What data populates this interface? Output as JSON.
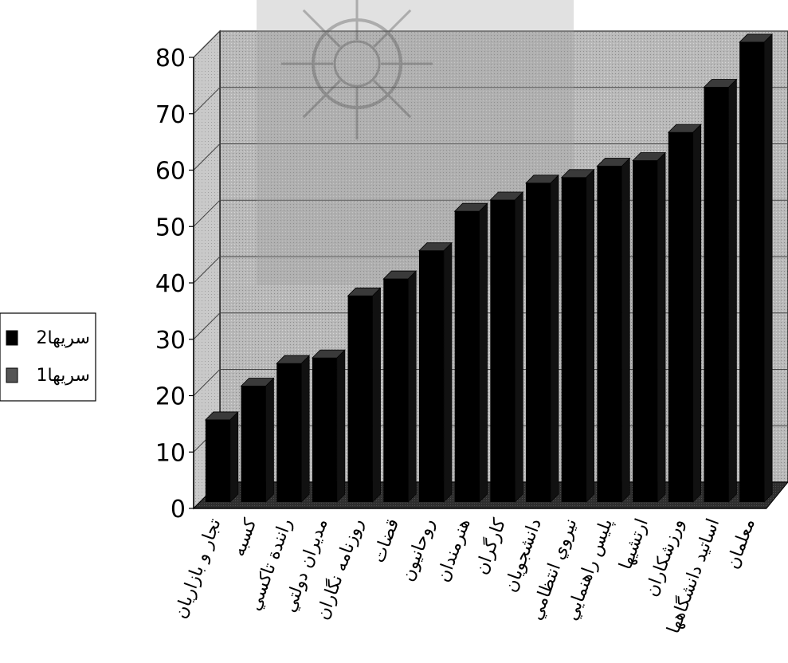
{
  "chart_data": {
    "type": "bar",
    "title": "",
    "xlabel": "",
    "ylabel": "",
    "ylim": [
      0,
      80
    ],
    "y_ticks": [
      "0",
      "10",
      "20",
      "30",
      "40",
      "50",
      "60",
      "70",
      "80"
    ],
    "grid": true,
    "legend_position": "left",
    "categories": [
      "تجار و بازاريان",
      "كسبه",
      "رانندة تاكسي",
      "مديران دولتي",
      "روزنامه نگاران",
      "قضات",
      "روحانيون",
      "هنرمندان",
      "كارگران",
      "دانشجويان",
      "نيروي انتظامي",
      "پليس راهنمايي",
      "ارتشيها",
      "ورزشكاران",
      "اساتيد دانشگاهها",
      "معلمان"
    ],
    "series": [
      {
        "name": "سريها1",
        "values": [
          0,
          0,
          0,
          0,
          0,
          0,
          0,
          0,
          0,
          0,
          0,
          0,
          0,
          0,
          0,
          0
        ]
      },
      {
        "name": "سريها2",
        "values": [
          14,
          20,
          24,
          25,
          36,
          39,
          44,
          51,
          53,
          56,
          57,
          59,
          60,
          65,
          73,
          81
        ]
      }
    ],
    "colors": {
      "series2": "#000000",
      "series1": "#555555",
      "wall": "#b8b8b8",
      "floor": "#3a3a3a",
      "watermark": "#9a9a9a"
    }
  }
}
